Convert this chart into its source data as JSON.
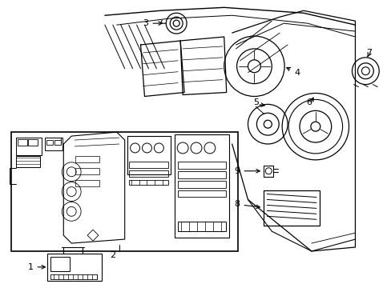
{
  "fig_width": 4.89,
  "fig_height": 3.6,
  "dpi": 100,
  "bg_color": "#ffffff",
  "line_color": "#000000",
  "lw": 0.8,
  "fs": 8
}
